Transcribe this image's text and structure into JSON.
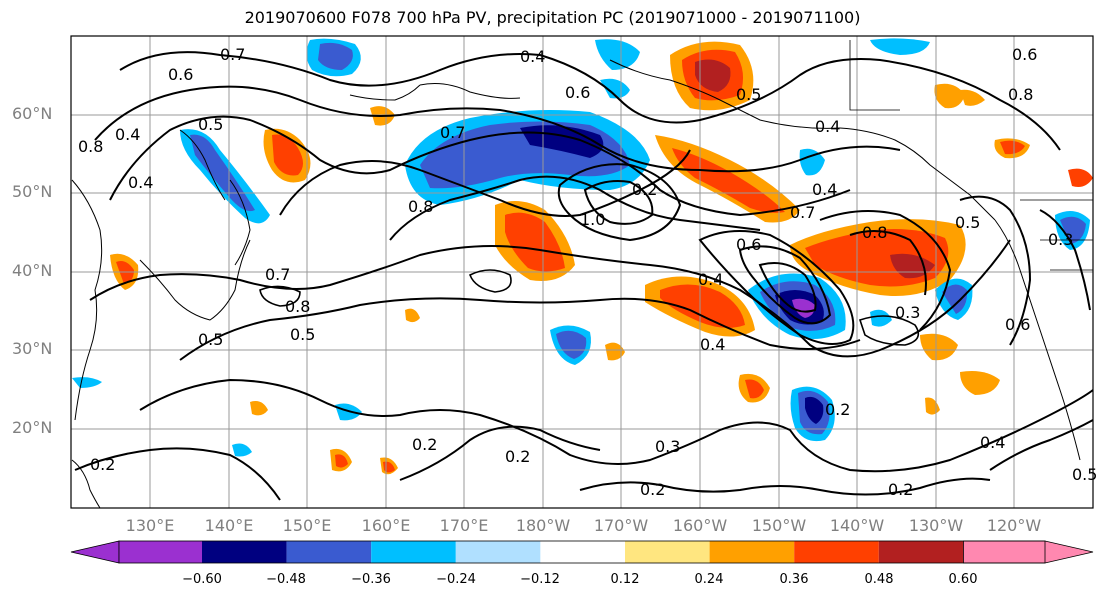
{
  "title": "2019070600 F078 700 hPa PV, precipitation PC (2019071000 - 2019071100)",
  "lat_labels": [
    "60°N",
    "50°N",
    "40°N",
    "30°N",
    "20°N"
  ],
  "lon_labels": [
    "130°E",
    "140°E",
    "150°E",
    "160°E",
    "170°E",
    "180°W",
    "170°W",
    "160°W",
    "150°W",
    "140°W",
    "130°W",
    "120°W"
  ],
  "colorbar": {
    "ticks": [
      "−0.60",
      "−0.48",
      "−0.36",
      "−0.24",
      "−0.12",
      "0.12",
      "0.24",
      "0.36",
      "0.48",
      "0.60"
    ],
    "colors": [
      "#9b30d0",
      "#000080",
      "#3a5bd0",
      "#00bfff",
      "#b0e0ff",
      "#ffffff",
      "#ffe680",
      "#ffa000",
      "#ff4000",
      "#b22020",
      "#ff88b0"
    ]
  },
  "contour_labels": [
    "0.7",
    "0.6",
    "0.5",
    "0.8",
    "0.4",
    "0.4",
    "0.7",
    "0.8",
    "1.0",
    "0.2",
    "0.6",
    "0.4",
    "0.7",
    "0.8",
    "0.5",
    "0.4",
    "0.6",
    "0.5",
    "0.4",
    "0.7",
    "0.8",
    "0.5",
    "0.5",
    "0.4",
    "0.3",
    "0.2",
    "0.2",
    "0.2",
    "0.2",
    "0.3",
    "0.2",
    "0.2",
    "0.4",
    "0.6",
    "0.8",
    "0.4",
    "0.3",
    "0.6",
    "0.5"
  ]
}
